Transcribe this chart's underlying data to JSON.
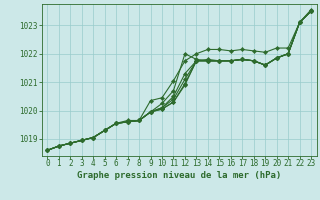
{
  "title": "Graphe pression niveau de la mer (hPa)",
  "bg_color": "#cce8e8",
  "grid_color": "#99cccc",
  "line_color": "#2d6b2d",
  "marker_color": "#2d6b2d",
  "xlim": [
    -0.5,
    23.5
  ],
  "ylim": [
    1018.4,
    1023.75
  ],
  "xticks": [
    0,
    1,
    2,
    3,
    4,
    5,
    6,
    7,
    8,
    9,
    10,
    11,
    12,
    13,
    14,
    15,
    16,
    17,
    18,
    19,
    20,
    21,
    22,
    23
  ],
  "yticks": [
    1019,
    1020,
    1021,
    1022,
    1023
  ],
  "series": [
    [
      1018.6,
      1018.75,
      1018.85,
      1018.95,
      1019.05,
      1019.3,
      1019.55,
      1019.6,
      1019.65,
      1019.95,
      1020.25,
      1020.7,
      1022.0,
      1021.8,
      1021.75,
      1021.75,
      1021.75,
      1021.8,
      1021.75,
      1021.6,
      1021.85,
      1022.0,
      1023.1,
      1023.5
    ],
    [
      1018.6,
      1018.75,
      1018.85,
      1018.95,
      1019.05,
      1019.3,
      1019.55,
      1019.6,
      1019.65,
      1019.95,
      1020.1,
      1020.5,
      1021.3,
      1021.75,
      1021.8,
      1021.75,
      1021.75,
      1021.8,
      1021.75,
      1021.6,
      1021.85,
      1022.0,
      1023.1,
      1023.5
    ],
    [
      1018.6,
      1018.75,
      1018.85,
      1018.95,
      1019.05,
      1019.3,
      1019.55,
      1019.6,
      1019.65,
      1019.95,
      1020.1,
      1020.4,
      1021.1,
      1021.75,
      1021.75,
      1021.75,
      1021.75,
      1021.8,
      1021.75,
      1021.6,
      1021.85,
      1022.0,
      1023.1,
      1023.5
    ],
    [
      1018.6,
      1018.75,
      1018.85,
      1018.95,
      1019.05,
      1019.3,
      1019.55,
      1019.6,
      1019.65,
      1019.95,
      1020.05,
      1020.3,
      1020.95,
      1021.75,
      1021.75,
      1021.75,
      1021.75,
      1021.8,
      1021.75,
      1021.6,
      1021.85,
      1022.0,
      1023.1,
      1023.5
    ],
    [
      1018.6,
      1018.75,
      1018.85,
      1018.95,
      1019.05,
      1019.3,
      1019.55,
      1019.6,
      1019.65,
      1019.95,
      1020.05,
      1020.3,
      1020.9,
      1021.75,
      1021.75,
      1021.75,
      1021.75,
      1021.8,
      1021.75,
      1021.6,
      1021.85,
      1022.0,
      1023.1,
      1023.5
    ],
    [
      1018.6,
      1018.75,
      1018.85,
      1018.95,
      1019.05,
      1019.3,
      1019.55,
      1019.65,
      1019.65,
      1020.35,
      1020.45,
      1021.05,
      1021.75,
      1022.0,
      1022.15,
      1022.15,
      1022.1,
      1022.15,
      1022.1,
      1022.05,
      1022.2,
      1022.2,
      1023.1,
      1023.55
    ]
  ],
  "xlabel_fontsize": 6.5,
  "tick_fontsize": 5.5,
  "linewidth": 0.8,
  "markersize": 2.2
}
